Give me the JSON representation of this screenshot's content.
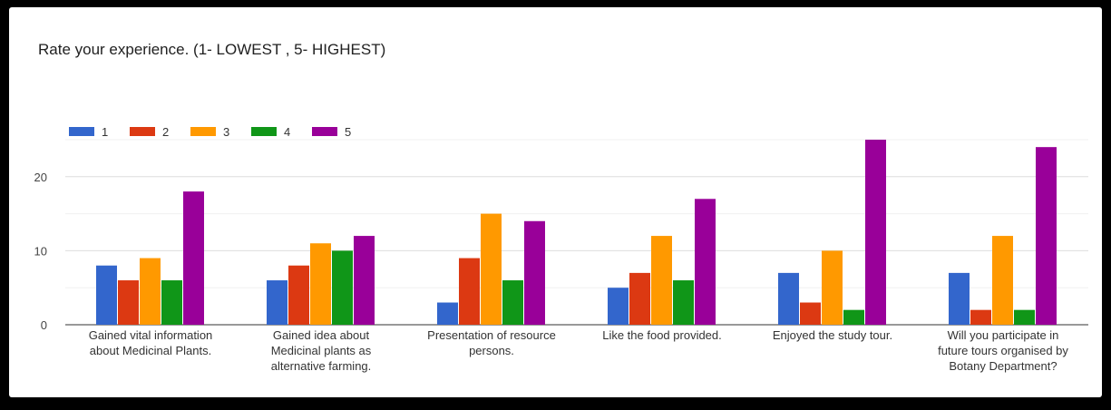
{
  "title": "Rate your experience. (1- LOWEST , 5- HIGHEST)",
  "chart_data": {
    "type": "bar",
    "title": "Rate your experience. (1- LOWEST , 5- HIGHEST)",
    "xlabel": "",
    "ylabel": "",
    "ylim": [
      0,
      25
    ],
    "yticks": [
      0,
      10,
      20
    ],
    "grid": true,
    "legend_position": "top-left",
    "categories": [
      [
        "Gained vital information",
        "about Medicinal Plants."
      ],
      [
        "Gained idea about",
        "Medicinal plants as",
        "alternative farming."
      ],
      [
        "Presentation of resource",
        "persons."
      ],
      [
        "Like the food provided."
      ],
      [
        "Enjoyed the study tour."
      ],
      [
        "Will you participate in",
        "future tours organised by",
        "Botany Department?"
      ]
    ],
    "series": [
      {
        "name": "1",
        "color": "#3366cc",
        "values": [
          8,
          6,
          3,
          5,
          7,
          7
        ]
      },
      {
        "name": "2",
        "color": "#dc3912",
        "values": [
          6,
          8,
          9,
          7,
          3,
          2
        ]
      },
      {
        "name": "3",
        "color": "#ff9900",
        "values": [
          9,
          11,
          15,
          12,
          10,
          12
        ]
      },
      {
        "name": "4",
        "color": "#109618",
        "values": [
          6,
          10,
          6,
          6,
          2,
          2
        ]
      },
      {
        "name": "5",
        "color": "#990099",
        "values": [
          18,
          12,
          14,
          17,
          25,
          24
        ]
      }
    ]
  }
}
